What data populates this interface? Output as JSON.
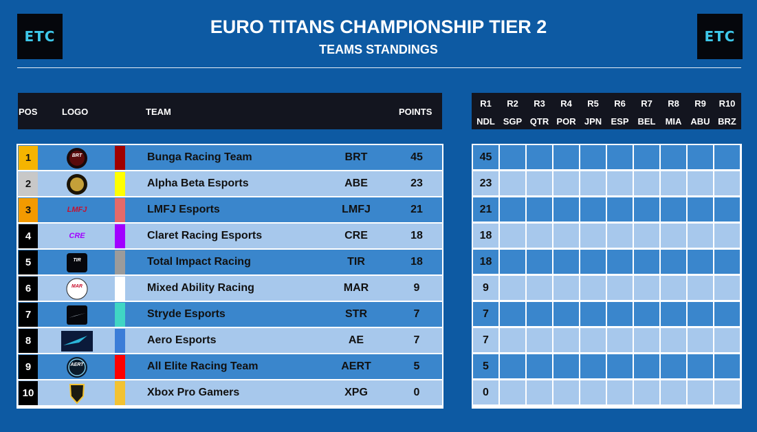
{
  "header": {
    "logo_text": "ETC",
    "title": "EURO TITANS CHAMPIONSHIP TIER 2",
    "subtitle": "TEAMS STANDINGS"
  },
  "columns": {
    "pos": "POS",
    "logo": "LOGO",
    "team": "TEAM",
    "points": "POINTS"
  },
  "rounds": [
    {
      "num": "R1",
      "code": "NDL"
    },
    {
      "num": "R2",
      "code": "SGP"
    },
    {
      "num": "R3",
      "code": "QTR"
    },
    {
      "num": "R4",
      "code": "POR"
    },
    {
      "num": "R5",
      "code": "JPN"
    },
    {
      "num": "R6",
      "code": "ESP"
    },
    {
      "num": "R7",
      "code": "BEL"
    },
    {
      "num": "R8",
      "code": "MIA"
    },
    {
      "num": "R9",
      "code": "ABU"
    },
    {
      "num": "R10",
      "code": "BRZ"
    }
  ],
  "teams": [
    {
      "pos": "1",
      "name": "Bunga Racing Team",
      "abbr": "BRT",
      "points": "45",
      "r1": "45",
      "color": "#a00000",
      "logo_icon": "bunga-logo-icon",
      "logo_text": "BRT"
    },
    {
      "pos": "2",
      "name": "Alpha Beta Esports",
      "abbr": "ABE",
      "points": "23",
      "r1": "23",
      "color": "#ffff00",
      "logo_icon": "alpha-beta-logo-icon",
      "logo_text": ""
    },
    {
      "pos": "3",
      "name": "LMFJ Esports",
      "abbr": "LMFJ",
      "points": "21",
      "r1": "21",
      "color": "#e46a6a",
      "logo_icon": "lmfj-logo-icon",
      "logo_text": "LMFJ"
    },
    {
      "pos": "4",
      "name": "Claret Racing Esports",
      "abbr": "CRE",
      "points": "18",
      "r1": "18",
      "color": "#a100ff",
      "logo_icon": "claret-logo-icon",
      "logo_text": "CRE"
    },
    {
      "pos": "5",
      "name": "Total Impact Racing",
      "abbr": "TIR",
      "points": "18",
      "r1": "18",
      "color": "#9b9b9b",
      "logo_icon": "total-impact-logo-icon",
      "logo_text": "TIR"
    },
    {
      "pos": "6",
      "name": "Mixed Ability Racing",
      "abbr": "MAR",
      "points": "9",
      "r1": "9",
      "color": "#ffffff",
      "logo_icon": "mixed-ability-logo-icon",
      "logo_text": "MAR"
    },
    {
      "pos": "7",
      "name": "Stryde Esports",
      "abbr": "STR",
      "points": "7",
      "r1": "7",
      "color": "#40d6c4",
      "logo_icon": "stryde-logo-icon",
      "logo_text": ""
    },
    {
      "pos": "8",
      "name": "Aero Esports",
      "abbr": "AE",
      "points": "7",
      "r1": "7",
      "color": "#3b7dd8",
      "logo_icon": "aero-logo-icon",
      "logo_text": ""
    },
    {
      "pos": "9",
      "name": "All Elite Racing Team",
      "abbr": "AERT",
      "points": "5",
      "r1": "5",
      "color": "#ff0000",
      "logo_icon": "all-elite-logo-icon",
      "logo_text": "AERT"
    },
    {
      "pos": "10",
      "name": "Xbox Pro Gamers",
      "abbr": "XPG",
      "points": "0",
      "r1": "0",
      "color": "#f2c232",
      "logo_icon": "xbox-pro-logo-icon",
      "logo_text": ""
    }
  ]
}
